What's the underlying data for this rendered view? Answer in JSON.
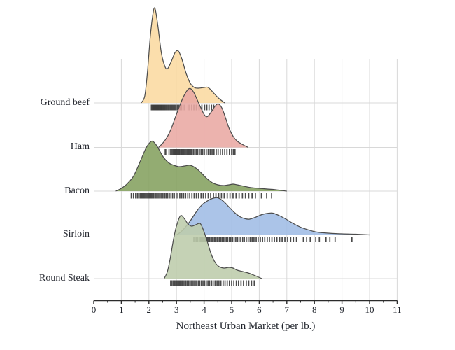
{
  "chart_data": {
    "type": "area",
    "variant": "ridgeline (joyplot) of kernel density estimates with rug marks under each baseline",
    "title": "",
    "xlabel": "Northeast Urban Market (per lb.)",
    "ylabel": "",
    "x_range": [
      0,
      11
    ],
    "x_major_ticks": [
      0,
      1,
      2,
      3,
      4,
      5,
      6,
      7,
      8,
      9,
      10,
      11
    ],
    "x_minor_tick_step": 0.5,
    "grid": "vertical lines at integer ticks; horizontal line at each category baseline",
    "legend_position": "none (category labels on left axis)",
    "categories": [
      "Ground beef",
      "Ham",
      "Bacon",
      "Sirloin",
      "Round Steak"
    ],
    "density_units": "relative height above category baseline (rendered px)",
    "series": [
      {
        "name": "Ground beef",
        "color": "#FBD9A0",
        "density": [
          [
            1.72,
            0
          ],
          [
            1.85,
            10
          ],
          [
            1.95,
            45
          ],
          [
            2.05,
            95
          ],
          [
            2.15,
            128
          ],
          [
            2.22,
            135
          ],
          [
            2.32,
            112
          ],
          [
            2.45,
            72
          ],
          [
            2.58,
            52
          ],
          [
            2.68,
            49
          ],
          [
            2.82,
            60
          ],
          [
            2.95,
            72
          ],
          [
            3.07,
            74
          ],
          [
            3.2,
            62
          ],
          [
            3.35,
            42
          ],
          [
            3.5,
            28
          ],
          [
            3.65,
            22
          ],
          [
            3.8,
            21
          ],
          [
            4.0,
            22
          ],
          [
            4.15,
            22
          ],
          [
            4.35,
            14
          ],
          [
            4.55,
            6
          ],
          [
            4.75,
            0
          ]
        ],
        "rug": [
          2.09,
          2.12,
          2.14,
          2.16,
          2.18,
          2.2,
          2.22,
          2.24,
          2.26,
          2.28,
          2.3,
          2.32,
          2.34,
          2.36,
          2.38,
          2.41,
          2.43,
          2.45,
          2.47,
          2.5,
          2.52,
          2.55,
          2.57,
          2.6,
          2.63,
          2.66,
          2.7,
          2.73,
          2.77,
          2.81,
          2.85,
          2.89,
          2.94,
          2.98,
          3.03,
          3.08,
          3.13,
          3.18,
          3.24,
          3.3,
          3.42,
          3.48,
          3.55,
          3.63,
          3.72,
          3.82,
          3.92,
          4.02,
          4.1,
          4.18,
          4.27,
          4.35
        ]
      },
      {
        "name": "Ham",
        "color": "#E9A8A3",
        "density": [
          [
            2.35,
            0
          ],
          [
            2.5,
            6
          ],
          [
            2.65,
            14
          ],
          [
            2.8,
            26
          ],
          [
            2.95,
            42
          ],
          [
            3.1,
            58
          ],
          [
            3.25,
            72
          ],
          [
            3.4,
            82
          ],
          [
            3.5,
            84
          ],
          [
            3.62,
            79
          ],
          [
            3.75,
            68
          ],
          [
            3.9,
            55
          ],
          [
            4.02,
            46
          ],
          [
            4.12,
            44
          ],
          [
            4.25,
            50
          ],
          [
            4.4,
            59
          ],
          [
            4.52,
            62
          ],
          [
            4.65,
            56
          ],
          [
            4.78,
            42
          ],
          [
            4.9,
            28
          ],
          [
            5.05,
            16
          ],
          [
            5.2,
            9
          ],
          [
            5.4,
            4
          ],
          [
            5.6,
            0
          ]
        ],
        "rug": [
          2.56,
          2.61,
          2.73,
          2.79,
          2.84,
          2.88,
          2.91,
          2.94,
          2.97,
          3.0,
          3.03,
          3.06,
          3.09,
          3.12,
          3.16,
          3.19,
          3.23,
          3.27,
          3.31,
          3.35,
          3.39,
          3.43,
          3.47,
          3.52,
          3.56,
          3.61,
          3.66,
          3.71,
          3.77,
          3.83,
          3.89,
          3.95,
          4.01,
          4.08,
          4.15,
          4.22,
          4.29,
          4.36,
          4.44,
          4.51,
          4.59,
          4.67,
          4.75,
          4.83,
          4.92,
          5.0,
          5.06,
          5.12
        ]
      },
      {
        "name": "Bacon",
        "color": "#84A15F",
        "density": [
          [
            0.8,
            0
          ],
          [
            1.0,
            4
          ],
          [
            1.2,
            10
          ],
          [
            1.45,
            22
          ],
          [
            1.7,
            44
          ],
          [
            1.9,
            62
          ],
          [
            2.05,
            70
          ],
          [
            2.15,
            71
          ],
          [
            2.3,
            64
          ],
          [
            2.5,
            50
          ],
          [
            2.7,
            41
          ],
          [
            2.9,
            37
          ],
          [
            3.1,
            35
          ],
          [
            3.3,
            36
          ],
          [
            3.5,
            37
          ],
          [
            3.7,
            33
          ],
          [
            3.9,
            26
          ],
          [
            4.1,
            18
          ],
          [
            4.3,
            12
          ],
          [
            4.5,
            9
          ],
          [
            4.7,
            8
          ],
          [
            4.9,
            9
          ],
          [
            5.05,
            10
          ],
          [
            5.2,
            9
          ],
          [
            5.45,
            7
          ],
          [
            5.7,
            5
          ],
          [
            6.0,
            4
          ],
          [
            6.3,
            3
          ],
          [
            6.6,
            2
          ],
          [
            7.0,
            0
          ]
        ],
        "rug": [
          1.36,
          1.44,
          1.52,
          1.58,
          1.63,
          1.68,
          1.73,
          1.77,
          1.81,
          1.85,
          1.89,
          1.93,
          1.97,
          2.01,
          2.05,
          2.09,
          2.13,
          2.17,
          2.22,
          2.26,
          2.31,
          2.36,
          2.41,
          2.46,
          2.51,
          2.57,
          2.62,
          2.68,
          2.74,
          2.8,
          2.86,
          2.92,
          2.99,
          3.05,
          3.12,
          3.19,
          3.26,
          3.33,
          3.41,
          3.48,
          3.56,
          3.64,
          3.72,
          3.8,
          3.89,
          3.97,
          4.06,
          4.15,
          4.24,
          4.34,
          4.43,
          4.53,
          4.63,
          4.73,
          4.84,
          4.94,
          5.05,
          5.16,
          5.27,
          5.39,
          5.5,
          5.62,
          5.74,
          5.86,
          6.08,
          6.27,
          6.45
        ]
      },
      {
        "name": "Sirloin",
        "color": "#9FBCE5",
        "density": [
          [
            3.0,
            0
          ],
          [
            3.15,
            4
          ],
          [
            3.3,
            10
          ],
          [
            3.5,
            20
          ],
          [
            3.7,
            32
          ],
          [
            3.9,
            42
          ],
          [
            4.1,
            48
          ],
          [
            4.3,
            52
          ],
          [
            4.5,
            53
          ],
          [
            4.7,
            48
          ],
          [
            4.9,
            40
          ],
          [
            5.1,
            32
          ],
          [
            5.3,
            26
          ],
          [
            5.5,
            23
          ],
          [
            5.65,
            22.5
          ],
          [
            5.85,
            25
          ],
          [
            6.1,
            29
          ],
          [
            6.35,
            31
          ],
          [
            6.5,
            31
          ],
          [
            6.7,
            28
          ],
          [
            6.95,
            23
          ],
          [
            7.2,
            17
          ],
          [
            7.5,
            11
          ],
          [
            7.8,
            7
          ],
          [
            8.1,
            4
          ],
          [
            8.5,
            2.5
          ],
          [
            9.0,
            1.5
          ],
          [
            9.5,
            1
          ],
          [
            10.0,
            0
          ]
        ],
        "rug": [
          3.63,
          3.71,
          3.77,
          3.83,
          3.88,
          3.92,
          3.96,
          4.0,
          4.04,
          4.08,
          4.12,
          4.16,
          4.2,
          4.25,
          4.29,
          4.33,
          4.38,
          4.42,
          4.47,
          4.51,
          4.56,
          4.61,
          4.66,
          4.71,
          4.76,
          4.81,
          4.86,
          4.92,
          4.97,
          5.03,
          5.09,
          5.15,
          5.21,
          5.27,
          5.33,
          5.4,
          5.46,
          5.53,
          5.6,
          5.67,
          5.74,
          5.81,
          5.89,
          5.96,
          6.04,
          6.12,
          6.2,
          6.29,
          6.37,
          6.46,
          6.55,
          6.64,
          6.74,
          6.83,
          6.93,
          7.03,
          7.14,
          7.24,
          7.35,
          7.6,
          7.72,
          7.85,
          8.05,
          8.18,
          8.42,
          8.56,
          8.75,
          9.36
        ]
      },
      {
        "name": "Round Steak",
        "color": "#BDCCAB",
        "density": [
          [
            2.55,
            0
          ],
          [
            2.67,
            10
          ],
          [
            2.78,
            30
          ],
          [
            2.9,
            58
          ],
          [
            3.02,
            78
          ],
          [
            3.15,
            90
          ],
          [
            3.28,
            86
          ],
          [
            3.42,
            78
          ],
          [
            3.55,
            75
          ],
          [
            3.7,
            77
          ],
          [
            3.85,
            79
          ],
          [
            3.95,
            72
          ],
          [
            4.1,
            55
          ],
          [
            4.25,
            36
          ],
          [
            4.4,
            23
          ],
          [
            4.55,
            17
          ],
          [
            4.72,
            15
          ],
          [
            4.9,
            16
          ],
          [
            5.05,
            15
          ],
          [
            5.2,
            12
          ],
          [
            5.4,
            10
          ],
          [
            5.6,
            8
          ],
          [
            5.8,
            5
          ],
          [
            6.1,
            0
          ]
        ],
        "rug": [
          2.79,
          2.84,
          2.89,
          2.93,
          2.97,
          3.01,
          3.05,
          3.09,
          3.13,
          3.17,
          3.21,
          3.25,
          3.3,
          3.34,
          3.39,
          3.43,
          3.48,
          3.53,
          3.58,
          3.63,
          3.68,
          3.73,
          3.79,
          3.84,
          3.9,
          3.96,
          4.02,
          4.08,
          4.14,
          4.2,
          4.27,
          4.33,
          4.4,
          4.47,
          4.54,
          4.61,
          4.69,
          4.76,
          4.84,
          4.92,
          5.0,
          5.08,
          5.17,
          5.25,
          5.34,
          5.43,
          5.53,
          5.62,
          5.72,
          5.82
        ]
      }
    ]
  },
  "colors": {
    "background": "#ffffff",
    "curve_stroke": "#4b4b4b",
    "grid": "#d8d8d8",
    "axis": "#2b2b2b",
    "rug": "#3b3b3b",
    "text": "#20242c",
    "fill_opacity": 0.88
  }
}
